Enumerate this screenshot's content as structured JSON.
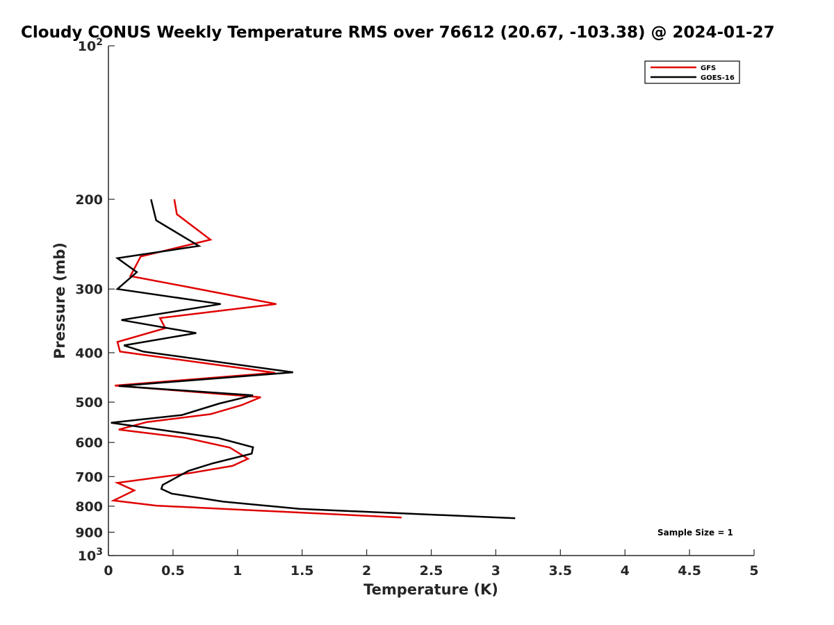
{
  "chart_data": {
    "type": "line",
    "title": "Cloudy CONUS Weekly Temperature RMS over 76612 (20.67, -103.38) @ 2024-01-27",
    "xlabel": "Temperature (K)",
    "ylabel": "Pressure (mb)",
    "xlim": [
      0,
      5
    ],
    "ylim": [
      100,
      1000
    ],
    "y_scale": "log",
    "y_direction": "reversed",
    "x_ticks": [
      "0",
      "0.5",
      "1",
      "1.5",
      "2",
      "2.5",
      "3",
      "3.5",
      "4",
      "4.5",
      "5"
    ],
    "y_ticks": [
      {
        "value": 100,
        "base": "10",
        "exp": "2"
      },
      {
        "value": 200,
        "label": "200"
      },
      {
        "value": 300,
        "label": "300"
      },
      {
        "value": 400,
        "label": "400"
      },
      {
        "value": 500,
        "label": "500"
      },
      {
        "value": 600,
        "label": "600"
      },
      {
        "value": 700,
        "label": "700"
      },
      {
        "value": 800,
        "label": "800"
      },
      {
        "value": 900,
        "label": "900"
      },
      {
        "value": 1000,
        "base": "10",
        "exp": "3"
      }
    ],
    "legend_position": "top-right",
    "grid": false,
    "series": [
      {
        "name": "GFS",
        "color": "#e00000",
        "points": [
          [
            0.51,
            200
          ],
          [
            0.53,
            214
          ],
          [
            0.79,
            240
          ],
          [
            0.25,
            259
          ],
          [
            0.17,
            283
          ],
          [
            0.64,
            298
          ],
          [
            1.3,
            321
          ],
          [
            0.4,
            342
          ],
          [
            0.44,
            358
          ],
          [
            0.07,
            381
          ],
          [
            0.09,
            398
          ],
          [
            1.29,
            438
          ],
          [
            0.05,
            464
          ],
          [
            1.18,
            489
          ],
          [
            1.03,
            507
          ],
          [
            0.79,
            528
          ],
          [
            0.3,
            547
          ],
          [
            0.08,
            566
          ],
          [
            0.59,
            587
          ],
          [
            0.94,
            614
          ],
          [
            1.08,
            646
          ],
          [
            0.96,
            667
          ],
          [
            0.63,
            689
          ],
          [
            0.07,
            720
          ],
          [
            0.2,
            745
          ],
          [
            0.04,
            780
          ],
          [
            0.37,
            798
          ],
          [
            2.27,
            842
          ]
        ]
      },
      {
        "name": "GOES-16",
        "color": "#000000",
        "points": [
          [
            0.33,
            200
          ],
          [
            0.37,
            220
          ],
          [
            0.7,
            247
          ],
          [
            0.07,
            261
          ],
          [
            0.22,
            278
          ],
          [
            0.07,
            300
          ],
          [
            0.87,
            321
          ],
          [
            0.1,
            345
          ],
          [
            0.68,
            366
          ],
          [
            0.12,
            387
          ],
          [
            0.27,
            398
          ],
          [
            1.43,
            437
          ],
          [
            0.08,
            465
          ],
          [
            1.12,
            485
          ],
          [
            0.86,
            503
          ],
          [
            0.57,
            530
          ],
          [
            0.02,
            549
          ],
          [
            0.85,
            588
          ],
          [
            1.12,
            613
          ],
          [
            1.11,
            631
          ],
          [
            0.81,
            659
          ],
          [
            0.62,
            682
          ],
          [
            0.42,
            727
          ],
          [
            0.41,
            740
          ],
          [
            0.49,
            756
          ],
          [
            0.89,
            784
          ],
          [
            1.48,
            810
          ],
          [
            3.15,
            845
          ]
        ]
      }
    ],
    "annotation": "Sample Size = 1"
  }
}
